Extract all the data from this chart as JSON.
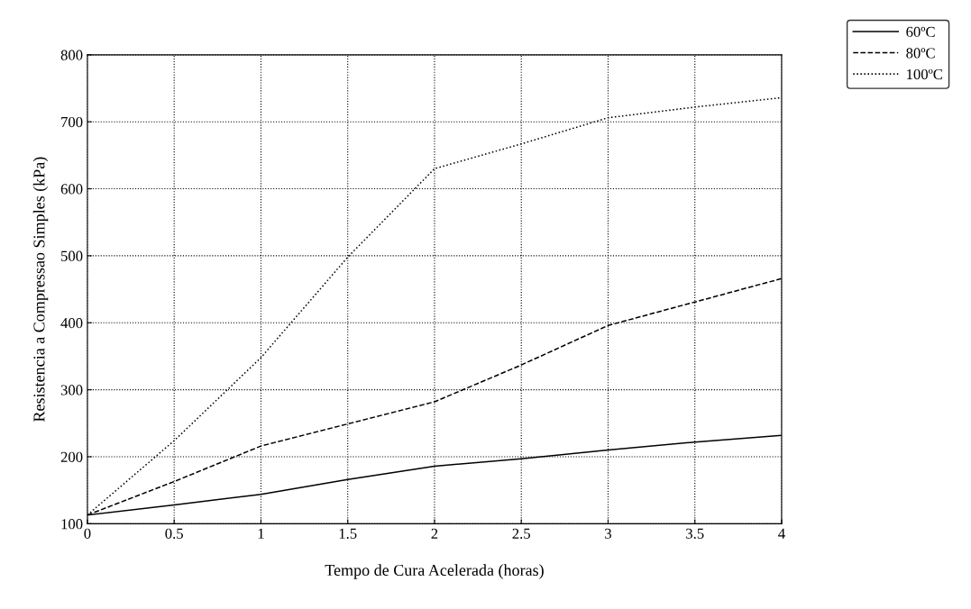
{
  "chart_data": {
    "type": "line",
    "xlabel": "Tempo de Cura Acelerada (horas)",
    "ylabel": "Resistencia a Compressao Simples (kPa)",
    "x": [
      0,
      0.5,
      1,
      1.5,
      2,
      2.5,
      3,
      3.5,
      4
    ],
    "series": [
      {
        "name": "60ºC",
        "color": "#000000",
        "line_style": "solid",
        "values": [
          113,
          128,
          144,
          166,
          186,
          197,
          210,
          222,
          232
        ]
      },
      {
        "name": "80ºC",
        "color": "#000000",
        "line_style": "dashed",
        "values": [
          113,
          163,
          216,
          249,
          282,
          337,
          396,
          431,
          466
        ]
      },
      {
        "name": "100ºC",
        "color": "#000000",
        "line_style": "dotted",
        "values": [
          113,
          224,
          348,
          498,
          630,
          667,
          706,
          722,
          736
        ]
      }
    ],
    "xlim": [
      0,
      4
    ],
    "xticks": [
      0,
      0.5,
      1,
      1.5,
      2,
      2.5,
      3,
      3.5,
      4
    ],
    "ylim": [
      100,
      800
    ],
    "yticks": [
      100,
      200,
      300,
      400,
      500,
      600,
      700,
      800
    ],
    "grid": true,
    "legend": "top right",
    "marker": "none"
  }
}
